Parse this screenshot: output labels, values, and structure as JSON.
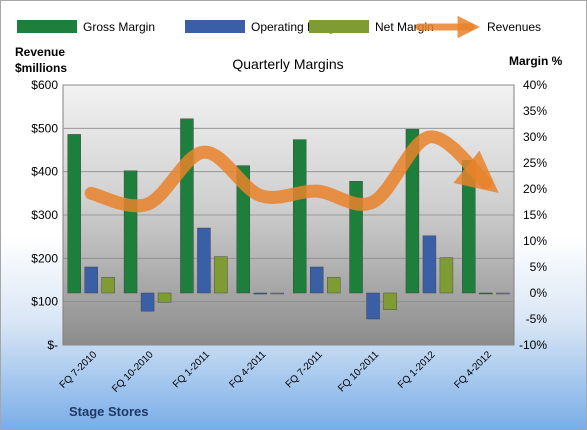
{
  "chart_data": {
    "type": "bar",
    "title": "Quarterly Margins",
    "company": "Stage Stores",
    "categories": [
      "FQ 7-2010",
      "FQ 10-2010",
      "FQ 1-2011",
      "FQ 4-2011",
      "FQ 7-2011",
      "FQ 10-2011",
      "FQ 1-2012",
      "FQ 4-2012"
    ],
    "series": [
      {
        "name": "Gross Margin",
        "axis": "right",
        "color": "#1e7e3c",
        "values": [
          30.5,
          23.5,
          33.5,
          24.5,
          29.5,
          21.5,
          31.5,
          25.5
        ]
      },
      {
        "name": "Operating Margin",
        "axis": "right",
        "color": "#3a5fa6",
        "values": [
          5,
          -3.5,
          12.5,
          -0.2,
          5,
          -5,
          11,
          -0.1
        ]
      },
      {
        "name": "Net Margin",
        "axis": "right",
        "color": "#7f9b33",
        "values": [
          3,
          -1.8,
          7,
          -0.1,
          3,
          -3.2,
          6.8,
          -0.1
        ]
      }
    ],
    "revenue_series": {
      "name": "Revenues",
      "axis": "left",
      "color": "#e9822a",
      "values": [
        350,
        325,
        445,
        345,
        355,
        330,
        480,
        375
      ]
    },
    "legend": [
      "Gross Margin",
      "Operating Margin",
      "Net Margin",
      "Revenues"
    ],
    "left_axis": {
      "title_line1": "Revenue",
      "title_line2": "$millions",
      "range": [
        0,
        600
      ],
      "tick_values": [
        0,
        100,
        200,
        300,
        400,
        500,
        600
      ],
      "tick_labels": [
        "$-",
        "$100",
        "$200",
        "$300",
        "$400",
        "$500",
        "$600"
      ]
    },
    "right_axis": {
      "title": "Margin %",
      "range": [
        -10,
        40
      ],
      "tick_values": [
        -10,
        -5,
        0,
        5,
        10,
        15,
        20,
        25,
        30,
        35,
        40
      ],
      "tick_labels": [
        "-10%",
        "-5%",
        "0%",
        "5%",
        "10%",
        "15%",
        "20%",
        "25%",
        "30%",
        "35%",
        "40%"
      ]
    },
    "grid": true,
    "legend_position": "top"
  }
}
